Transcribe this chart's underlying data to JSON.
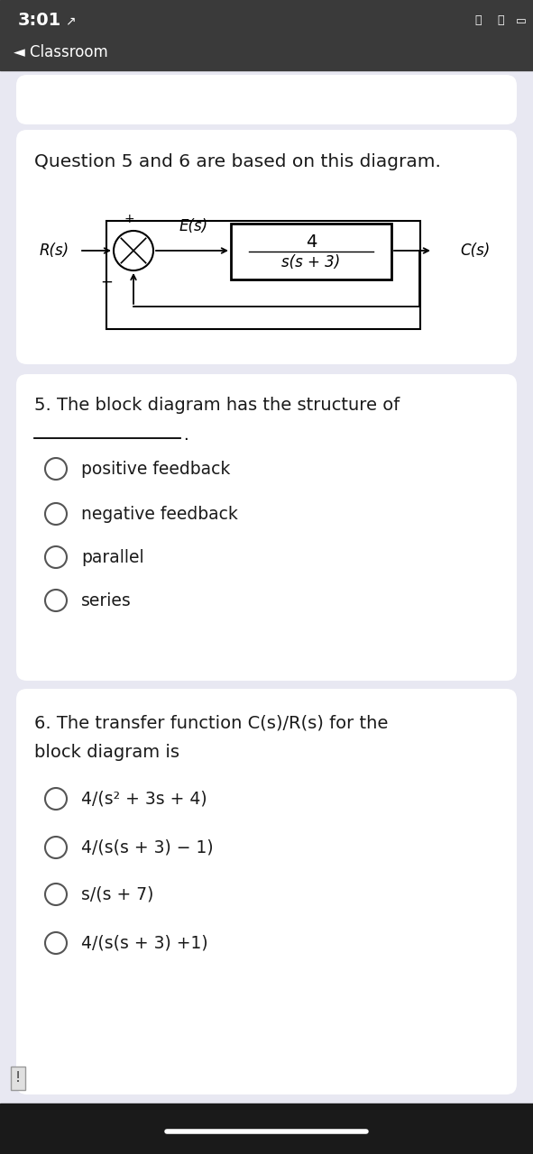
{
  "status_bar_time": "3:01",
  "status_arrow": "↗",
  "nav_back": "◄ Classroom",
  "bg_color": "#e8e8f2",
  "card_color": "#ffffff",
  "header_color": "#3a3a3a",
  "q56_intro": "Question 5 and 6 are based on this diagram.",
  "R_label": "R(s)",
  "E_label": "E(s)",
  "C_label": "C(s)",
  "plus_label": "+",
  "minus_label": "−",
  "q5_text": "5. The block diagram has the structure of",
  "q5_blank": "________________.",
  "q5_options": [
    "positive feedback",
    "negative feedback",
    "parallel",
    "series"
  ],
  "q6_text_line1": "6. The transfer function C(s)/R(s) for the",
  "q6_text_line2": "block diagram is",
  "q6_options": [
    "4/(s² + 3s + 4)",
    "4/(s(s + 3) − 1)",
    "s/(s + 7)",
    "4/(s(s + 3) +1)"
  ],
  "font_color": "#1a1a1a",
  "option_font_size": 13.5,
  "question_font_size": 14,
  "intro_font_size": 14.5
}
